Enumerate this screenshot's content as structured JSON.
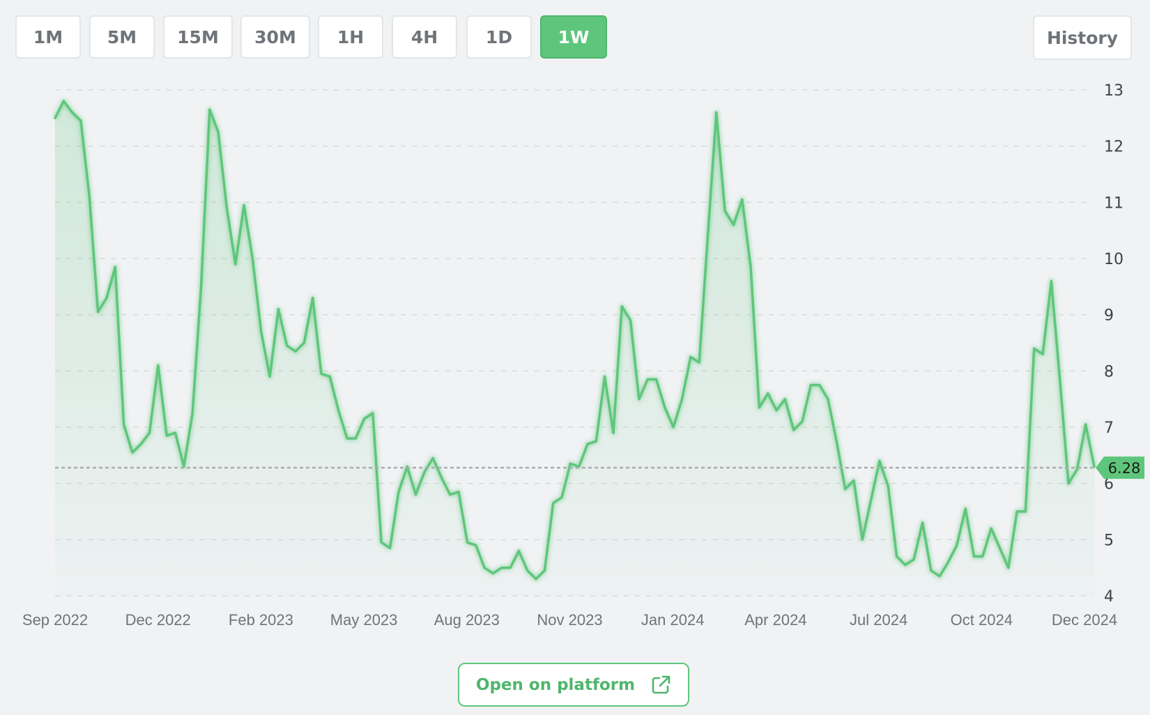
{
  "timeframes": [
    {
      "label": "1M",
      "active": false
    },
    {
      "label": "5M",
      "active": false
    },
    {
      "label": "15M",
      "active": false
    },
    {
      "label": "30M",
      "active": false
    },
    {
      "label": "1H",
      "active": false
    },
    {
      "label": "4H",
      "active": false
    },
    {
      "label": "1D",
      "active": false
    },
    {
      "label": "1W",
      "active": true
    }
  ],
  "history_label": "History",
  "open_platform_label": "Open on platform",
  "open_platform_icon": "external-link-icon",
  "colors": {
    "accent": "#5ec67b",
    "line": "#5ec67b",
    "grid": "#d6d9dc",
    "axis_text": "#6f7479",
    "background": "#f0f2f4"
  },
  "chart_data": {
    "type": "area",
    "xlabel": "",
    "ylabel": "",
    "ylim": [
      4,
      13
    ],
    "y_ticks": [
      4,
      5,
      6,
      7,
      8,
      9,
      10,
      11,
      12,
      13
    ],
    "x_tick_labels": [
      "Sep 2022",
      "Dec 2022",
      "Feb 2023",
      "May 2023",
      "Aug 2023",
      "Nov 2023",
      "Jan 2024",
      "Apr 2024",
      "Jul 2024",
      "Oct 2024",
      "Dec 2024"
    ],
    "grid": true,
    "current_value": 6.28,
    "current_value_label": "6.28",
    "series": [
      {
        "values": [
          12.5,
          12.8,
          12.6,
          12.45,
          11.1,
          9.05,
          9.3,
          9.85,
          7.05,
          6.55,
          6.7,
          6.9,
          8.1,
          6.85,
          6.9,
          6.3,
          7.25,
          9.5,
          12.65,
          12.25,
          10.9,
          9.9,
          10.95,
          10.0,
          8.7,
          7.9,
          9.1,
          8.45,
          8.35,
          8.5,
          9.3,
          7.95,
          7.9,
          7.3,
          6.8,
          6.8,
          7.15,
          7.25,
          4.95,
          4.85,
          5.85,
          6.3,
          5.8,
          6.2,
          6.45,
          6.1,
          5.8,
          5.85,
          4.95,
          4.9,
          4.5,
          4.4,
          4.5,
          4.5,
          4.8,
          4.45,
          4.3,
          4.45,
          5.65,
          5.75,
          6.35,
          6.3,
          6.7,
          6.75,
          7.9,
          6.9,
          9.15,
          8.9,
          7.5,
          7.85,
          7.85,
          7.35,
          7.0,
          7.5,
          8.25,
          8.15,
          10.4,
          12.6,
          10.85,
          10.6,
          11.05,
          9.85,
          7.35,
          7.6,
          7.3,
          7.5,
          6.95,
          7.1,
          7.75,
          7.75,
          7.5,
          6.75,
          5.9,
          6.05,
          5.0,
          5.7,
          6.4,
          5.95,
          4.7,
          4.55,
          4.65,
          5.3,
          4.45,
          4.35,
          4.6,
          4.9,
          5.55,
          4.7,
          4.7,
          5.2,
          4.85,
          4.5,
          5.5,
          5.5,
          8.4,
          8.3,
          9.6,
          7.85,
          6.0,
          6.25,
          7.05,
          6.3
        ]
      }
    ]
  }
}
